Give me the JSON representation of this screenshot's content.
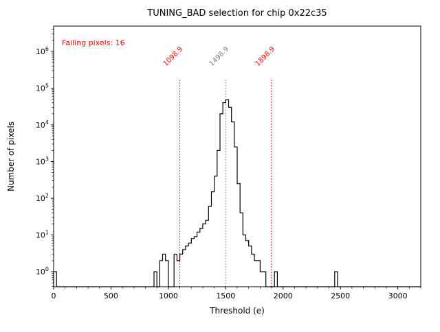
{
  "title": "TUNING_BAD selection for chip 0x22c35",
  "xlabel": "Threshold (e)",
  "ylabel": "Number of pixels",
  "annotations": {
    "failing_pixels": "Failing pixels: 16",
    "low_cut_label": "1098.9",
    "mid_line_label": "1498.9",
    "high_cut_label": "1898.9"
  },
  "colors": {
    "cut_line": "#ff0000",
    "mid_line": "#7f7f7f",
    "histogram": "#000000",
    "failing_text": "#ff0000"
  },
  "chart_data": {
    "type": "bar",
    "style": "step-histogram",
    "title": "TUNING_BAD selection for chip 0x22c35",
    "xlabel": "Threshold (e)",
    "ylabel": "Number of pixels",
    "y_scale": "log",
    "xlim": [
      0,
      3200
    ],
    "ylim_log10": [
      -0.41,
      6.69
    ],
    "x_ticks": [
      0,
      500,
      1000,
      1500,
      2000,
      2500,
      3000
    ],
    "x_minor_step": 100,
    "y_tick_exponents": [
      0,
      1,
      2,
      3,
      4,
      5,
      6
    ],
    "bin_width": 25,
    "bins": [
      [
        0,
        1
      ],
      [
        875,
        1
      ],
      [
        925,
        2
      ],
      [
        950,
        3
      ],
      [
        975,
        2
      ],
      [
        1050,
        3
      ],
      [
        1075,
        2
      ],
      [
        1100,
        3
      ],
      [
        1125,
        4
      ],
      [
        1150,
        5
      ],
      [
        1175,
        6
      ],
      [
        1200,
        8
      ],
      [
        1225,
        9
      ],
      [
        1250,
        12
      ],
      [
        1275,
        15
      ],
      [
        1300,
        20
      ],
      [
        1325,
        25
      ],
      [
        1350,
        60
      ],
      [
        1375,
        150
      ],
      [
        1400,
        400
      ],
      [
        1425,
        2000
      ],
      [
        1450,
        20000
      ],
      [
        1475,
        40000
      ],
      [
        1500,
        48000
      ],
      [
        1525,
        30000
      ],
      [
        1550,
        12000
      ],
      [
        1575,
        2500
      ],
      [
        1600,
        250
      ],
      [
        1625,
        40
      ],
      [
        1650,
        10
      ],
      [
        1675,
        7
      ],
      [
        1700,
        5
      ],
      [
        1725,
        3
      ],
      [
        1750,
        2
      ],
      [
        1775,
        2
      ],
      [
        1800,
        1
      ],
      [
        1825,
        1
      ],
      [
        1925,
        1
      ],
      [
        2450,
        1
      ]
    ],
    "vlines": [
      {
        "x": 1098.9,
        "label": "1098.9",
        "color": "#ff0000",
        "style": "dotted"
      },
      {
        "x": 1498.9,
        "label": "1498.9",
        "color": "#7f7f7f",
        "style": "dotted"
      },
      {
        "x": 1898.9,
        "label": "1898.9",
        "color": "#ff0000",
        "style": "dotted"
      }
    ]
  }
}
